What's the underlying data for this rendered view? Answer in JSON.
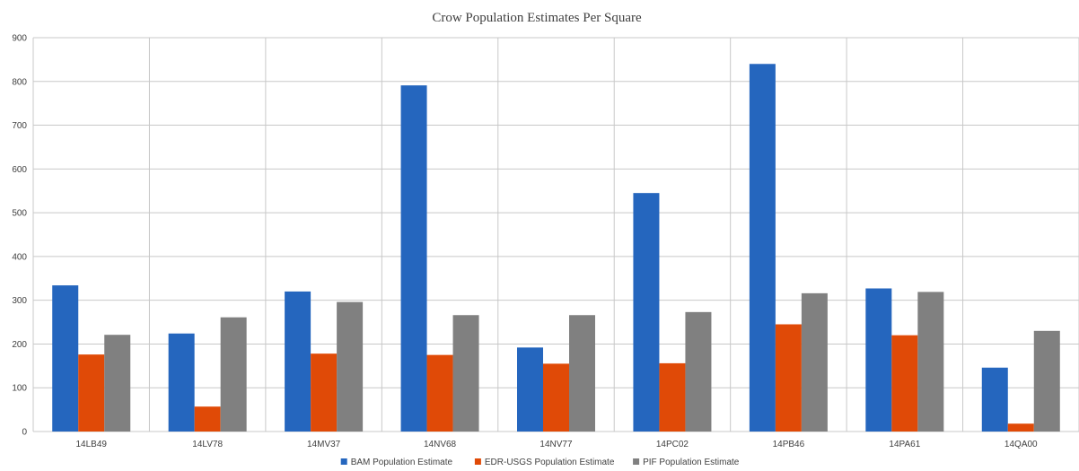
{
  "chart_data": {
    "type": "bar",
    "title": "Crow Population Estimates Per Square",
    "xlabel": "",
    "ylabel": "",
    "ylim": [
      0,
      900
    ],
    "yticks": [
      0,
      100,
      200,
      300,
      400,
      500,
      600,
      700,
      800,
      900
    ],
    "grid": true,
    "legend_position": "bottom",
    "categories": [
      "14LB49",
      "14LV78",
      "14MV37",
      "14NV68",
      "14NV77",
      "14PC02",
      "14PB46",
      "14PA61",
      "14QA00"
    ],
    "series": [
      {
        "name": "BAM Population Estimate",
        "color": "#2566be",
        "values": [
          334,
          224,
          320,
          791,
          192,
          545,
          840,
          327,
          146
        ]
      },
      {
        "name": "EDR-USGS Population Estimate",
        "color": "#e04a07",
        "values": [
          176,
          57,
          178,
          175,
          155,
          156,
          245,
          220,
          18
        ]
      },
      {
        "name": "PIF Population Estimate",
        "color": "#808080",
        "values": [
          221,
          261,
          296,
          266,
          266,
          273,
          316,
          319,
          230
        ]
      }
    ]
  }
}
